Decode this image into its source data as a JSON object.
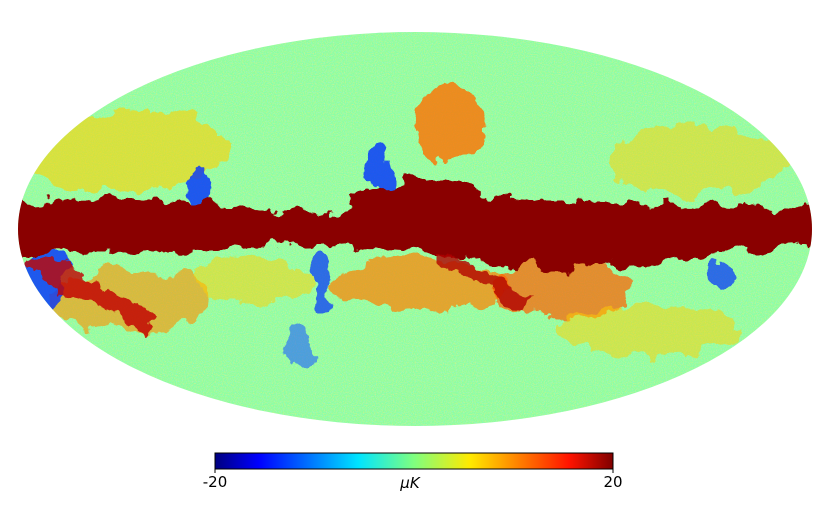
{
  "colorbar": {
    "min": -20,
    "max": 20,
    "ticks": [
      -20,
      20
    ],
    "label": "μK",
    "colormap": "jet"
  }
}
